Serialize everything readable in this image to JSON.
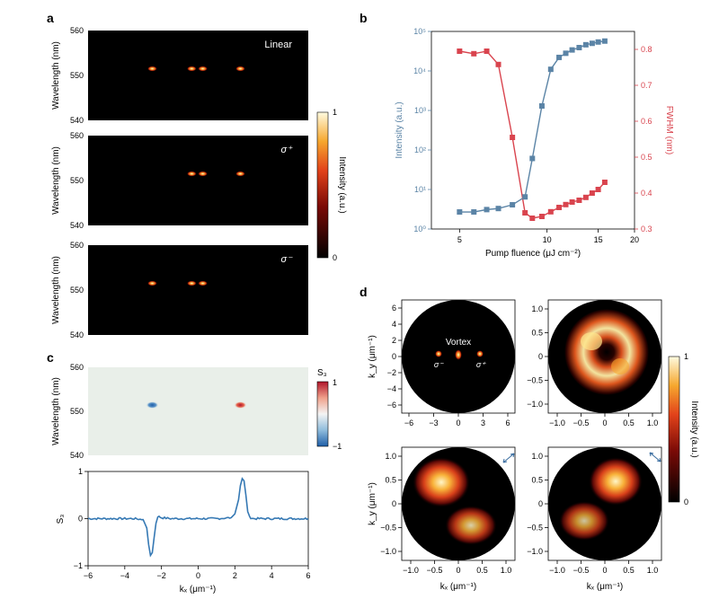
{
  "panels": {
    "a": "a",
    "b": "b",
    "c": "c",
    "d": "d"
  },
  "panel_a": {
    "ylabel": "Wavelength (nm)",
    "yticks": [
      "560",
      "550",
      "540"
    ],
    "subplots": [
      {
        "label": "Linear",
        "spots_kx": [
          -2.5,
          -0.35,
          0.25,
          2.3
        ],
        "wavelength": 551.5
      },
      {
        "label": "σ⁺",
        "spots_kx": [
          -0.35,
          0.25,
          2.3
        ],
        "wavelength": 551.5
      },
      {
        "label": "σ⁻",
        "spots_kx": [
          -2.5,
          -0.35,
          0.25
        ],
        "wavelength": 551.5
      }
    ],
    "colorbar": {
      "label": "Intensity (a.u.)",
      "max": "1",
      "min": "0"
    }
  },
  "chart_data": [
    {
      "panel": "b",
      "type": "line",
      "xlabel": "Pump fluence (μJ cm⁻²)",
      "xscale": "log",
      "xlim": [
        4,
        20
      ],
      "xticks": [
        "5",
        "10",
        "15",
        "20"
      ],
      "series": [
        {
          "name": "Intensity (a.u.)",
          "axis": "left",
          "yscale": "log",
          "ylim": [
            1,
            100000
          ],
          "color": "#5b84a6",
          "x": [
            5.0,
            5.6,
            6.2,
            6.8,
            7.6,
            8.4,
            8.9,
            9.6,
            10.3,
            11.0,
            11.6,
            12.2,
            12.9,
            13.6,
            14.3,
            15.0,
            15.8
          ],
          "values": [
            2.7,
            2.7,
            3.1,
            3.3,
            4.1,
            6.5,
            61,
            1300,
            11000,
            22000,
            28000,
            34000,
            39000,
            46000,
            50000,
            54000,
            57000
          ]
        },
        {
          "name": "FWHM (nm)",
          "axis": "right",
          "ylim": [
            0.3,
            0.85
          ],
          "color": "#d9444e",
          "x": [
            5.0,
            5.6,
            6.2,
            6.8,
            7.6,
            8.4,
            8.9,
            9.6,
            10.3,
            11.0,
            11.6,
            12.2,
            12.9,
            13.6,
            14.3,
            15.0,
            15.8
          ],
          "values": [
            0.795,
            0.788,
            0.795,
            0.758,
            0.555,
            0.345,
            0.33,
            0.335,
            0.348,
            0.36,
            0.368,
            0.375,
            0.38,
            0.388,
            0.4,
            0.41,
            0.43
          ]
        }
      ],
      "yticks_left": [
        "10⁰",
        "10¹",
        "10²",
        "10³",
        "10⁴",
        "10⁵"
      ],
      "yticks_right": [
        "0.3",
        "0.4",
        "0.5",
        "0.6",
        "0.7",
        "0.8"
      ]
    },
    {
      "panel": "c-bottom",
      "type": "line",
      "xlabel": "kₓ (μm⁻¹)",
      "ylabel": "S₃",
      "xlim": [
        -6,
        6
      ],
      "ylim": [
        -1,
        1
      ],
      "xticks": [
        "−6",
        "−4",
        "−2",
        "0",
        "2",
        "4",
        "6"
      ],
      "yticks": [
        "1",
        "0",
        "−1"
      ],
      "color": "#3679b4",
      "x": [
        -6,
        -5,
        -4,
        -3.5,
        -3.0,
        -2.8,
        -2.7,
        -2.6,
        -2.5,
        -2.4,
        -2.3,
        -2.2,
        -2.0,
        -1.5,
        -1,
        0,
        1,
        1.8,
        2.0,
        2.2,
        2.3,
        2.4,
        2.5,
        2.6,
        2.7,
        2.8,
        3.0,
        3.5,
        4,
        5,
        6
      ],
      "values": [
        0,
        0,
        0,
        0,
        -0.02,
        -0.2,
        -0.55,
        -0.78,
        -0.72,
        -0.4,
        -0.1,
        0.05,
        0.02,
        0,
        0,
        0,
        0,
        0.02,
        0.1,
        0.4,
        0.7,
        0.85,
        0.8,
        0.5,
        0.15,
        0.03,
        0,
        0,
        0,
        0,
        0
      ]
    }
  ],
  "panel_c_top": {
    "ylabel": "Wavelength (nm)",
    "yticks": [
      "560",
      "550",
      "540"
    ],
    "spots": [
      {
        "kx": -2.5,
        "s3": -1
      },
      {
        "kx": 2.3,
        "s3": 1
      }
    ],
    "colorbar": {
      "label": "S₃",
      "max": "1",
      "min": "−1"
    }
  },
  "panel_d": {
    "ylabel": "k_y (μm⁻¹)",
    "xlabel": "kₓ (μm⁻¹)",
    "top_left": {
      "xticks": [
        "−6",
        "−3",
        "0",
        "3",
        "6"
      ],
      "yticks": [
        "6",
        "4",
        "2",
        "0",
        "−2",
        "−4",
        "−6"
      ],
      "annotation": "Vortex",
      "sigma_minus": "σ⁻",
      "sigma_plus": "σ⁺"
    },
    "small_ticks_x": [
      "−1.0",
      "−0.5",
      "0",
      "0.5",
      "1.0"
    ],
    "small_ticks_y": [
      "1.0",
      "0.5",
      "0",
      "−0.5",
      "−1.0"
    ],
    "colorbar": {
      "label": "Intensity (a.u.)",
      "max": "1",
      "min": "0"
    }
  }
}
